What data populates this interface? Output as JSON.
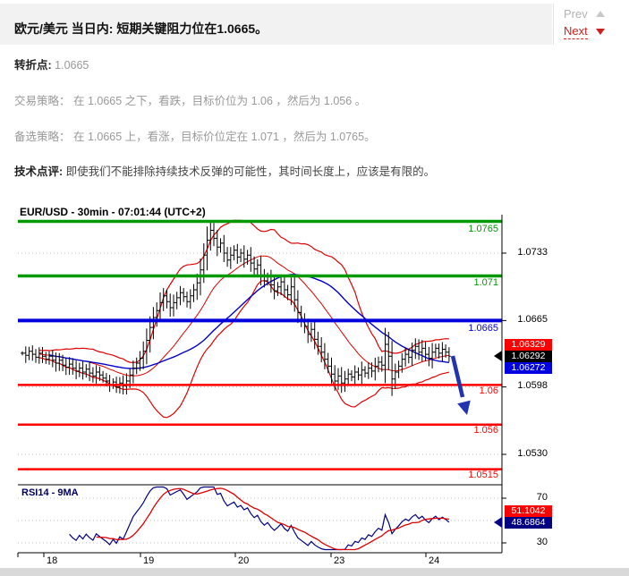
{
  "header": {
    "title": "欧元/美元 当日内: 短期关键阻力位在1.0665。",
    "prev_label": "Prev",
    "next_label": "Next"
  },
  "summary": {
    "pivot_label": "转折点:",
    "pivot_value": "1.0665",
    "trade_strategy": "交易策略： 在 1.0665 之下，看跌，目标价位为 1.06 ，然后为 1.056 。",
    "alt_strategy": "备选策略： 在 1.0665 上，看涨，目标价位定在 1.071 ，然后为 1.0765。",
    "comment_label": "技术点评:",
    "comment_text": "即使我们不能排除持续技术反弹的可能性，其时间长度上，应该是有限的。"
  },
  "chart_data": {
    "type": "candlestick",
    "title": "EUR/USD - 30min - 07:01:44 (UTC+2)",
    "timeframe": "30min",
    "x_ticks": [
      "18",
      "19",
      "20",
      "23",
      "24"
    ],
    "price_ticks": [
      {
        "v": 1.0733,
        "label": "1.0733"
      },
      {
        "v": 1.0665,
        "label": "1.0665"
      },
      {
        "v": 1.0598,
        "label": "1.0598"
      },
      {
        "v": 1.053,
        "label": "1.0530"
      }
    ],
    "levels": [
      {
        "v": 1.0765,
        "label": "1.0765",
        "color": "#009900",
        "role": "resistance"
      },
      {
        "v": 1.071,
        "label": "1.071",
        "color": "#009900",
        "role": "resistance"
      },
      {
        "v": 1.0665,
        "label": "1.0665",
        "color": "#0000dd",
        "role": "pivot"
      },
      {
        "v": 1.06,
        "label": "1.06",
        "color": "#ff0000",
        "role": "support"
      },
      {
        "v": 1.056,
        "label": "1.056",
        "color": "#ff0000",
        "role": "support"
      },
      {
        "v": 1.0515,
        "label": "1.0515",
        "color": "#ff0000",
        "role": "support"
      }
    ],
    "price_tags": [
      {
        "label": "1.06329",
        "bg": "#ff0000"
      },
      {
        "label": "1.06292",
        "bg": "#000000",
        "pointer": true
      },
      {
        "label": "1.06272",
        "bg": "#0000e0"
      }
    ],
    "closes": [
      1.0632,
      1.063,
      1.0634,
      1.0631,
      1.0628,
      1.0632,
      1.0629,
      1.0626,
      1.0629,
      1.0625,
      1.0622,
      1.0625,
      1.062,
      1.0618,
      1.0621,
      1.0617,
      1.0614,
      1.0617,
      1.0613,
      1.0616,
      1.0612,
      1.0609,
      1.0613,
      1.061,
      1.0607,
      1.0604,
      1.06,
      1.0603,
      1.0598,
      1.0602,
      1.0599,
      1.0604,
      1.061,
      1.0617,
      1.0622,
      1.0627,
      1.0634,
      1.0645,
      1.0658,
      1.0668,
      1.0675,
      1.0683,
      1.069,
      1.0684,
      1.0678,
      1.0683,
      1.0688,
      1.0693,
      1.0689,
      1.0684,
      1.069,
      1.0696,
      1.0703,
      1.0716,
      1.0731,
      1.0746,
      1.0756,
      1.0748,
      1.0739,
      1.0743,
      1.0733,
      1.0726,
      1.0731,
      1.0736,
      1.0729,
      1.0733,
      1.0727,
      1.0731,
      1.0723,
      1.0717,
      1.0721,
      1.0711,
      1.0705,
      1.0709,
      1.0701,
      1.0695,
      1.0699,
      1.0704,
      1.0696,
      1.0691,
      1.0699,
      1.0686,
      1.0673,
      1.0666,
      1.0659,
      1.0651,
      1.0656,
      1.0646,
      1.0639,
      1.0633,
      1.0626,
      1.0619,
      1.0611,
      1.0604,
      1.0609,
      1.0602,
      1.0606,
      1.0611,
      1.0608,
      1.0613,
      1.061,
      1.0615,
      1.0612,
      1.0617,
      1.0614,
      1.0619,
      1.0623,
      1.062,
      1.0641,
      1.0629,
      1.0606,
      1.0613,
      1.0619,
      1.0626,
      1.0631,
      1.0628,
      1.0635,
      1.0639,
      1.0633,
      1.0637,
      1.0631,
      1.0627,
      1.0633,
      1.0637,
      1.0632,
      1.0636,
      1.0633,
      1.0629
    ],
    "indicators": {
      "bollinger_period": 20,
      "bollinger_dev": 2,
      "ma_period": 40,
      "rsi_period": 14,
      "rsi_ma_period": 9
    },
    "annotation_arrow": {
      "direction": "down",
      "color": "#2233b0"
    },
    "rsi": {
      "label": "RSI14 - 9MA",
      "grid": [
        70,
        50,
        30
      ],
      "ticks": [
        {
          "v": 70,
          "label": "70"
        },
        {
          "v": 30,
          "label": "30"
        }
      ],
      "tags": [
        {
          "label": "51.1042",
          "bg": "#ff0000"
        },
        {
          "label": "48.6864",
          "bg": "#000080",
          "pointer": true
        }
      ]
    },
    "colors": {
      "candle": "#000000",
      "bands": "#e00000",
      "ma": "#0000cc",
      "rsi_line": "#000080",
      "rsi_ma": "#dd0000",
      "grid": "#bfbfbf"
    }
  }
}
